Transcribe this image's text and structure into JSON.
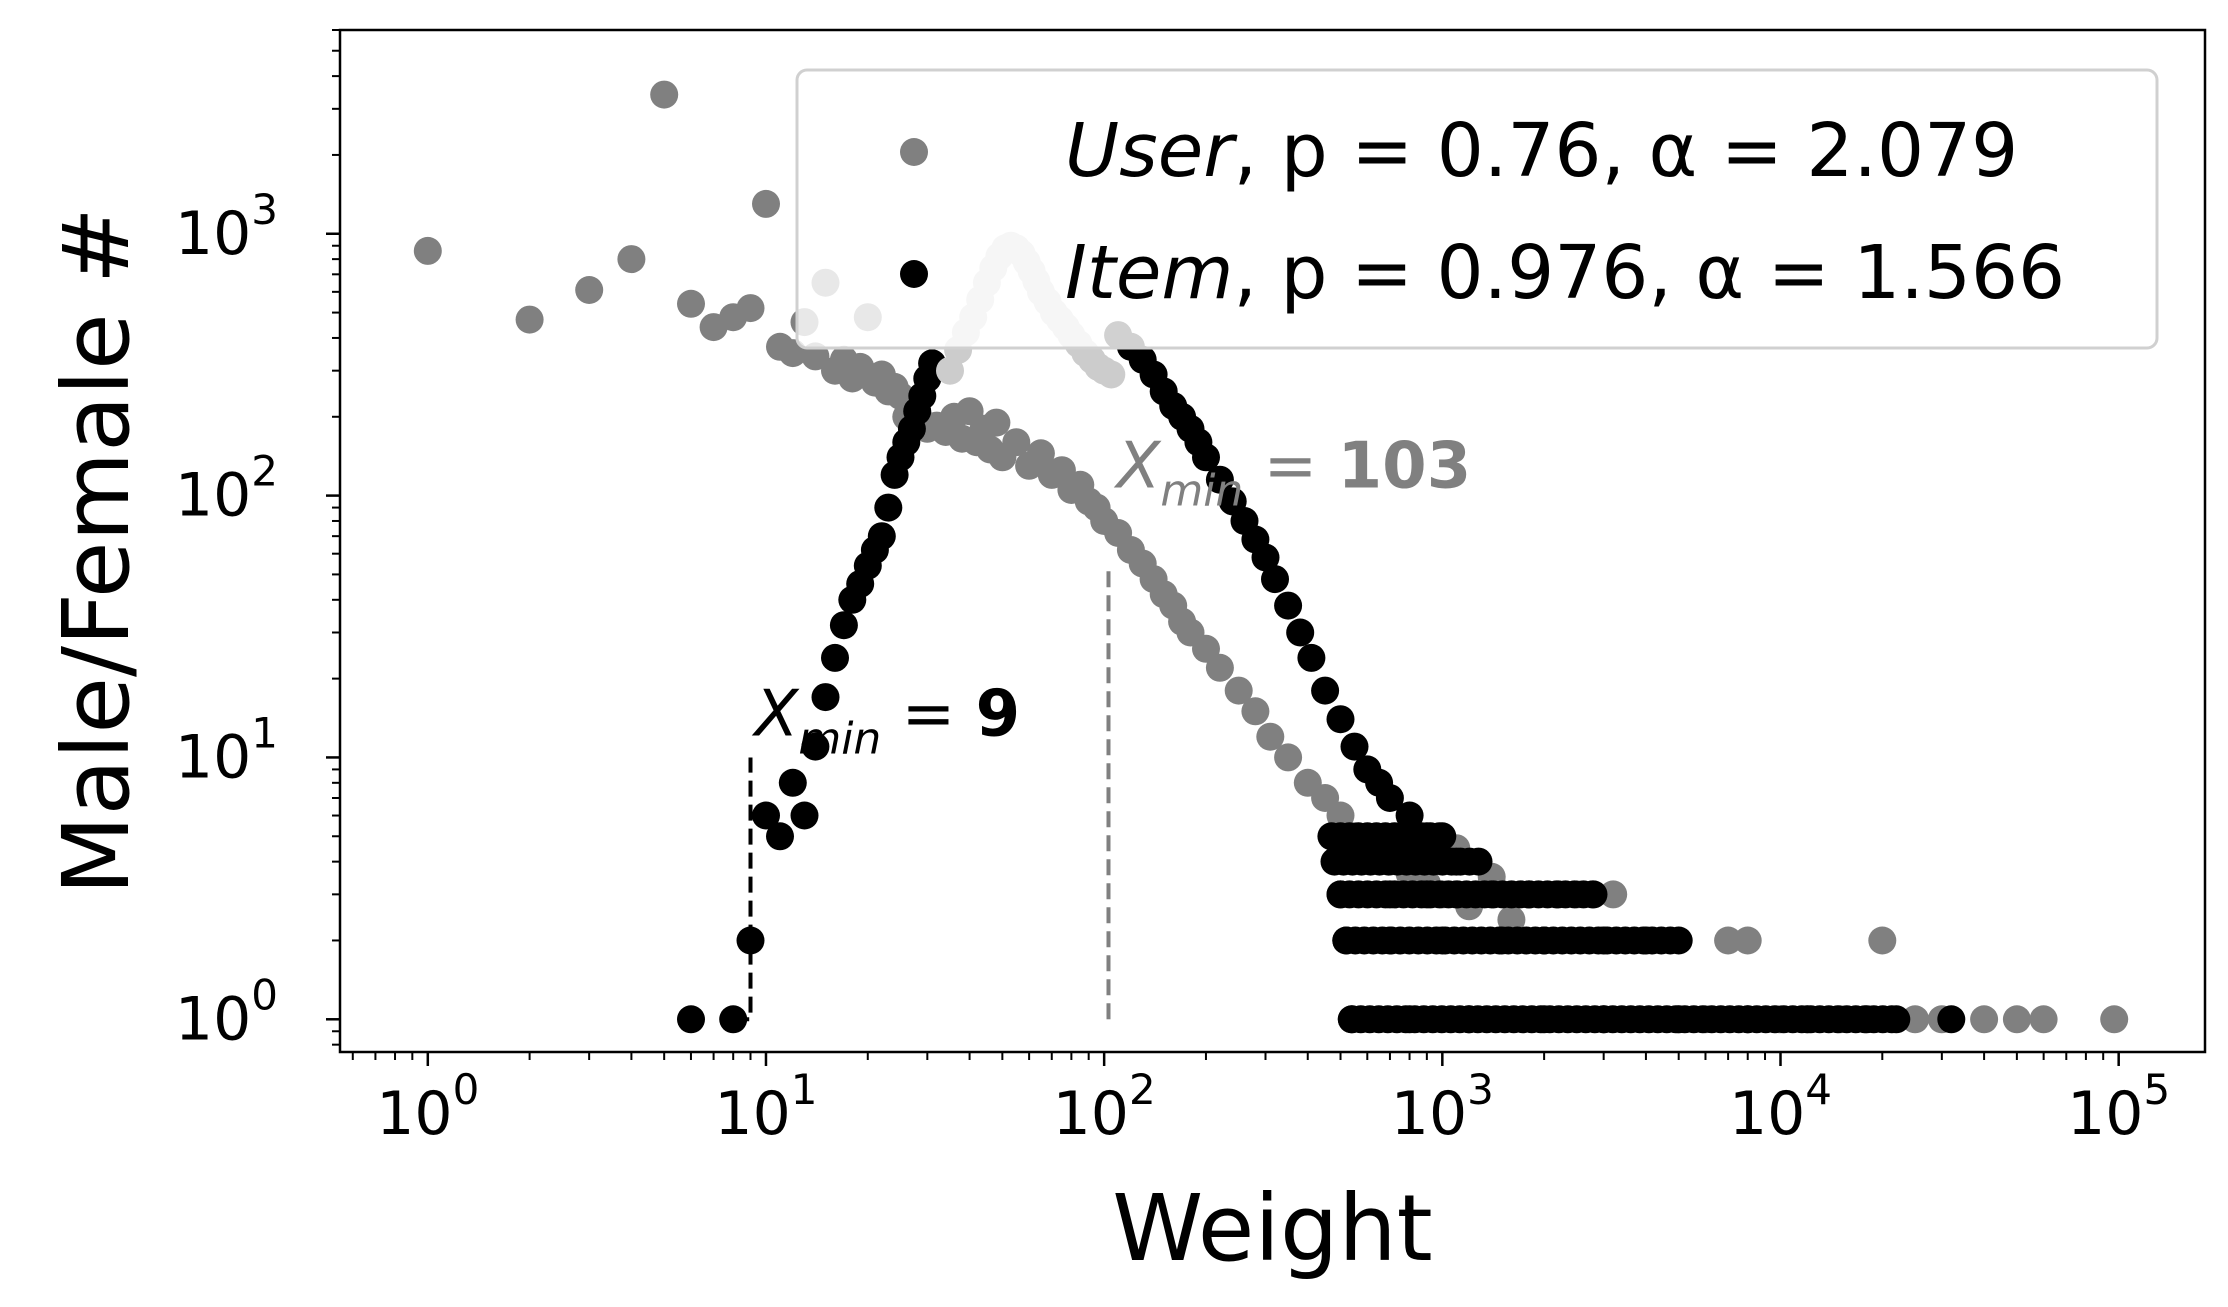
{
  "chart_data": {
    "type": "scatter",
    "xlabel": "Weight",
    "ylabel": "Male/Female #",
    "xscale": "log",
    "yscale": "log",
    "xlim": [
      0.55,
      180000
    ],
    "ylim": [
      0.75,
      6000
    ],
    "x_ticks": [
      {
        "base": "10",
        "exp": "0",
        "value": 1
      },
      {
        "base": "10",
        "exp": "1",
        "value": 10
      },
      {
        "base": "10",
        "exp": "2",
        "value": 100
      },
      {
        "base": "10",
        "exp": "3",
        "value": 1000
      },
      {
        "base": "10",
        "exp": "4",
        "value": 10000
      },
      {
        "base": "10",
        "exp": "5",
        "value": 100000
      }
    ],
    "y_ticks": [
      {
        "base": "10",
        "exp": "0",
        "value": 1
      },
      {
        "base": "10",
        "exp": "1",
        "value": 10
      },
      {
        "base": "10",
        "exp": "2",
        "value": 100
      },
      {
        "base": "10",
        "exp": "3",
        "value": 1000
      }
    ],
    "legend": {
      "position": "top-right",
      "entries": [
        {
          "series": 0,
          "name": "User",
          "p": "0.76",
          "alpha": "2.079"
        },
        {
          "series": 1,
          "name": "Item",
          "p": "0.976",
          "alpha": "1.566"
        }
      ]
    },
    "series": [
      {
        "name": "User",
        "color": "#808080",
        "highlight_color": "#cccccc",
        "peak": [
          [
            35,
            300
          ],
          [
            37,
            360
          ],
          [
            39,
            420
          ],
          [
            41,
            480
          ],
          [
            43,
            560
          ],
          [
            45,
            650
          ],
          [
            47,
            740
          ],
          [
            49,
            820
          ],
          [
            51,
            880
          ],
          [
            53,
            900
          ],
          [
            55,
            880
          ],
          [
            57,
            840
          ],
          [
            59,
            780
          ],
          [
            61,
            720
          ],
          [
            63,
            660
          ],
          [
            65,
            600
          ],
          [
            68,
            550
          ],
          [
            71,
            500
          ],
          [
            74,
            470
          ],
          [
            77,
            440
          ],
          [
            80,
            410
          ],
          [
            84,
            380
          ],
          [
            88,
            350
          ],
          [
            92,
            330
          ],
          [
            96,
            310
          ],
          [
            100,
            300
          ],
          [
            105,
            290
          ]
        ],
        "points": [
          [
            1,
            860
          ],
          [
            2,
            470
          ],
          [
            3,
            610
          ],
          [
            4,
            800
          ],
          [
            5,
            3400
          ],
          [
            6,
            540
          ],
          [
            7,
            440
          ],
          [
            8,
            480
          ],
          [
            9,
            520
          ],
          [
            10,
            1300
          ],
          [
            11,
            370
          ],
          [
            12,
            350
          ],
          [
            13,
            460
          ],
          [
            14,
            340
          ],
          [
            15,
            650
          ],
          [
            16,
            300
          ],
          [
            17,
            330
          ],
          [
            18,
            280
          ],
          [
            19,
            310
          ],
          [
            20,
            480
          ],
          [
            21,
            270
          ],
          [
            22,
            290
          ],
          [
            23,
            250
          ],
          [
            24,
            260
          ],
          [
            25,
            240
          ],
          [
            26,
            200
          ],
          [
            27,
            230
          ],
          [
            28,
            210
          ],
          [
            29,
            190
          ],
          [
            30,
            180
          ],
          [
            32,
            185
          ],
          [
            34,
            175
          ],
          [
            36,
            200
          ],
          [
            38,
            165
          ],
          [
            40,
            210
          ],
          [
            42,
            160
          ],
          [
            44,
            180
          ],
          [
            46,
            150
          ],
          [
            48,
            190
          ],
          [
            50,
            140
          ],
          [
            55,
            160
          ],
          [
            60,
            130
          ],
          [
            65,
            145
          ],
          [
            70,
            120
          ],
          [
            75,
            125
          ],
          [
            80,
            105
          ],
          [
            85,
            110
          ],
          [
            90,
            95
          ],
          [
            95,
            90
          ],
          [
            100,
            80
          ],
          [
            110,
            72
          ],
          [
            120,
            62
          ],
          [
            130,
            55
          ],
          [
            140,
            48
          ],
          [
            150,
            42
          ],
          [
            160,
            38
          ],
          [
            170,
            33
          ],
          [
            180,
            30
          ],
          [
            200,
            26
          ],
          [
            220,
            22
          ],
          [
            250,
            18
          ],
          [
            280,
            15
          ],
          [
            310,
            12
          ],
          [
            350,
            10
          ],
          [
            400,
            8
          ],
          [
            450,
            7
          ],
          [
            500,
            6
          ],
          [
            550,
            5
          ],
          [
            600,
            4.6
          ],
          [
            700,
            4
          ],
          [
            800,
            3.6
          ],
          [
            900,
            3.3
          ],
          [
            1000,
            3
          ],
          [
            1100,
            4.5
          ],
          [
            1200,
            2.7
          ],
          [
            1400,
            3.5
          ],
          [
            1600,
            2.4
          ],
          [
            1800,
            3
          ],
          [
            2000,
            2
          ],
          [
            2500,
            3
          ],
          [
            3000,
            2
          ],
          [
            3200,
            3
          ],
          [
            4000,
            2
          ],
          [
            5000,
            1
          ],
          [
            6000,
            1
          ],
          [
            7000,
            2
          ],
          [
            8000,
            2
          ],
          [
            10000,
            1
          ],
          [
            12000,
            1
          ],
          [
            15000,
            1
          ],
          [
            20000,
            2
          ],
          [
            25000,
            1
          ],
          [
            30000,
            1
          ],
          [
            40000,
            1
          ],
          [
            50000,
            1
          ],
          [
            60000,
            1
          ],
          [
            97000,
            1
          ]
        ]
      },
      {
        "name": "Item",
        "color": "#000000",
        "points": [
          [
            6,
            1
          ],
          [
            8,
            1
          ],
          [
            9,
            2
          ],
          [
            10,
            6
          ],
          [
            11,
            5
          ],
          [
            12,
            8
          ],
          [
            13,
            6
          ],
          [
            14,
            11
          ],
          [
            15,
            17
          ],
          [
            16,
            24
          ],
          [
            17,
            32
          ],
          [
            18,
            40
          ],
          [
            19,
            46
          ],
          [
            20,
            54
          ],
          [
            21,
            62
          ],
          [
            22,
            70
          ],
          [
            23,
            90
          ],
          [
            24,
            120
          ],
          [
            25,
            140
          ],
          [
            26,
            160
          ],
          [
            27,
            180
          ],
          [
            28,
            210
          ],
          [
            29,
            240
          ],
          [
            30,
            280
          ],
          [
            31,
            320
          ],
          [
            110,
            410
          ],
          [
            120,
            370
          ],
          [
            130,
            330
          ],
          [
            140,
            290
          ],
          [
            150,
            250
          ],
          [
            160,
            220
          ],
          [
            170,
            200
          ],
          [
            180,
            180
          ],
          [
            190,
            160
          ],
          [
            200,
            140
          ],
          [
            220,
            115
          ],
          [
            240,
            95
          ],
          [
            260,
            80
          ],
          [
            280,
            68
          ],
          [
            300,
            58
          ],
          [
            320,
            48
          ],
          [
            350,
            38
          ],
          [
            380,
            30
          ],
          [
            410,
            24
          ],
          [
            450,
            18
          ],
          [
            500,
            14
          ],
          [
            550,
            11
          ],
          [
            600,
            9
          ],
          [
            650,
            8
          ],
          [
            700,
            7
          ],
          [
            800,
            6
          ],
          [
            900,
            5
          ],
          [
            1000,
            5
          ],
          [
            1100,
            4
          ],
          [
            500,
            3
          ],
          [
            700,
            3
          ],
          [
            900,
            3
          ],
          [
            1100,
            3
          ],
          [
            1400,
            3
          ],
          [
            1800,
            3
          ],
          [
            2200,
            3
          ],
          [
            2800,
            3
          ],
          [
            520,
            2
          ],
          [
            700,
            2
          ],
          [
            1000,
            2
          ],
          [
            1500,
            2
          ],
          [
            2000,
            2
          ],
          [
            3000,
            2
          ],
          [
            4000,
            2
          ],
          [
            5000,
            2
          ],
          [
            540,
            1
          ],
          [
            800,
            1
          ],
          [
            1200,
            1
          ],
          [
            2000,
            1
          ],
          [
            3000,
            1
          ],
          [
            5000,
            1
          ],
          [
            8000,
            1
          ],
          [
            12000,
            1
          ],
          [
            18000,
            1
          ],
          [
            22000,
            1
          ],
          [
            32000,
            1
          ]
        ],
        "bands": [
          {
            "y": 1,
            "from": 540,
            "to": 22000
          },
          {
            "y": 2,
            "from": 520,
            "to": 5000
          },
          {
            "y": 3,
            "from": 500,
            "to": 2800
          },
          {
            "y": 4,
            "from": 480,
            "to": 1300
          },
          {
            "y": 5,
            "from": 470,
            "to": 1000
          }
        ]
      }
    ],
    "annotations": [
      {
        "series": 0,
        "label_main": "X",
        "label_sub": "min",
        "label_eq": " = ",
        "label_value": "103",
        "xmin": 103,
        "color": "#808080"
      },
      {
        "series": 1,
        "label_main": "X",
        "label_sub": "min",
        "label_eq": " = ",
        "label_value": "9",
        "xmin": 9,
        "color": "#000000"
      }
    ]
  }
}
